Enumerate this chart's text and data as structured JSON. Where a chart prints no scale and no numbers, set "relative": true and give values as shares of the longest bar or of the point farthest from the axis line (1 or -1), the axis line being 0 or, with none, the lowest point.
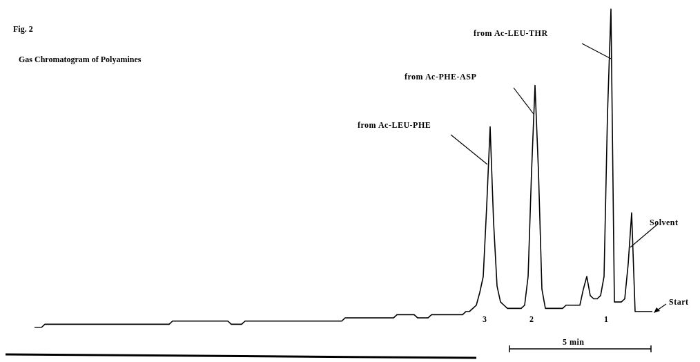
{
  "chart_data": {
    "type": "line",
    "title": "Fig. 2",
    "subtitle": "Gas Chromatogram of Polyamines",
    "relative": true,
    "color": "#000000",
    "categories": [
      null,
      null,
      null,
      null,
      null,
      null,
      null,
      null,
      null,
      null,
      null,
      null,
      null,
      null,
      null,
      null,
      null,
      null,
      null,
      null,
      null,
      null,
      null,
      null,
      null,
      null,
      null,
      null,
      null,
      null,
      null,
      null,
      null,
      null,
      null,
      null,
      null,
      null,
      null,
      null,
      null,
      null,
      null,
      null,
      null,
      null,
      null,
      null,
      null,
      null,
      null,
      null,
      null,
      null,
      null,
      null,
      null,
      null,
      null,
      null,
      null,
      null,
      null,
      null,
      null,
      null,
      null,
      null,
      null,
      null,
      null,
      null,
      null,
      null,
      null,
      null,
      null,
      null,
      null,
      null,
      null,
      null,
      null,
      null,
      null,
      null,
      null,
      null,
      null,
      null,
      null,
      null,
      null,
      null,
      null,
      null,
      null,
      null,
      null,
      null,
      null,
      null,
      null,
      null,
      null,
      null,
      null,
      null,
      null,
      null,
      null,
      null,
      null,
      null,
      null,
      null,
      null,
      null,
      null,
      null,
      null,
      null,
      null,
      null,
      null,
      null,
      null,
      null,
      null,
      null,
      null,
      null,
      null,
      null,
      null,
      null,
      null,
      null,
      null,
      null,
      null,
      null,
      null,
      null,
      null,
      null,
      null,
      null,
      null,
      null,
      null,
      null,
      null,
      null,
      null,
      null,
      null,
      null,
      null,
      null,
      null,
      null,
      null,
      null,
      null,
      null,
      null,
      null,
      null,
      null,
      null,
      null,
      null,
      null,
      null,
      null,
      null,
      null,
      null,
      null
    ],
    "values": [
      0,
      0.0,
      0.0,
      0.01,
      0.01,
      0.01,
      0.01,
      0.01,
      0.01,
      0.01,
      0.01,
      0.01,
      0.01,
      0.01,
      0.01,
      0.01,
      0.01,
      0.01,
      0.01,
      0.01,
      0.01,
      0.01,
      0.01,
      0.01,
      0.01,
      0.01,
      0.01,
      0.01,
      0.01,
      0.01,
      0.01,
      0.01,
      0.01,
      0.01,
      0.01,
      0.01,
      0.01,
      0.01,
      0.01,
      0.01,
      0.02,
      0.02,
      0.02,
      0.02,
      0.02,
      0.02,
      0.02,
      0.02,
      0.02,
      0.02,
      0.02,
      0.02,
      0.02,
      0.02,
      0.02,
      0.02,
      0.02,
      0.01,
      0.01,
      0.01,
      0.01,
      0.02,
      0.02,
      0.02,
      0.02,
      0.02,
      0.02,
      0.02,
      0.02,
      0.02,
      0.02,
      0.02,
      0.02,
      0.02,
      0.02,
      0.02,
      0.02,
      0.02,
      0.02,
      0.02,
      0.02,
      0.02,
      0.02,
      0.02,
      0.02,
      0.02,
      0.02,
      0.02,
      0.02,
      0.02,
      0.03,
      0.03,
      0.03,
      0.03,
      0.03,
      0.03,
      0.03,
      0.03,
      0.03,
      0.03,
      0.03,
      0.03,
      0.03,
      0.03,
      0.03,
      0.04,
      0.04,
      0.04,
      0.04,
      0.04,
      0.04,
      0.03,
      0.03,
      0.03,
      0.03,
      0.04,
      0.04,
      0.04,
      0.04,
      0.04,
      0.04,
      0.04,
      0.04,
      0.04,
      0.04,
      0.05,
      0.05,
      0.06,
      0.07,
      0.11,
      0.16,
      0.38,
      0.63,
      0.33,
      0.13,
      0.08,
      0.07,
      0.06,
      0.06,
      0.06,
      0.06,
      0.06,
      0.07,
      0.16,
      0.49,
      0.76,
      0.49,
      0.12,
      0.06,
      0.06,
      0.06,
      0.06,
      0.06,
      0.06,
      0.07,
      0.07,
      0.07,
      0.07,
      0.07,
      0.12,
      0.16,
      0.1,
      0.09,
      0.09,
      0.1,
      0.16,
      0.67,
      1,
      0.08,
      0.08,
      0.08,
      0.09,
      0.2,
      0.36,
      0.05,
      0.05,
      0.05,
      0.05,
      0.05,
      0.05
    ],
    "annotations": [
      "from Ac-LEU-PHE",
      "from Ac-PHE-ASP",
      "from Ac-LEU-THR",
      "Solvent",
      "Start",
      "3",
      "2",
      "1",
      "5 min"
    ]
  }
}
